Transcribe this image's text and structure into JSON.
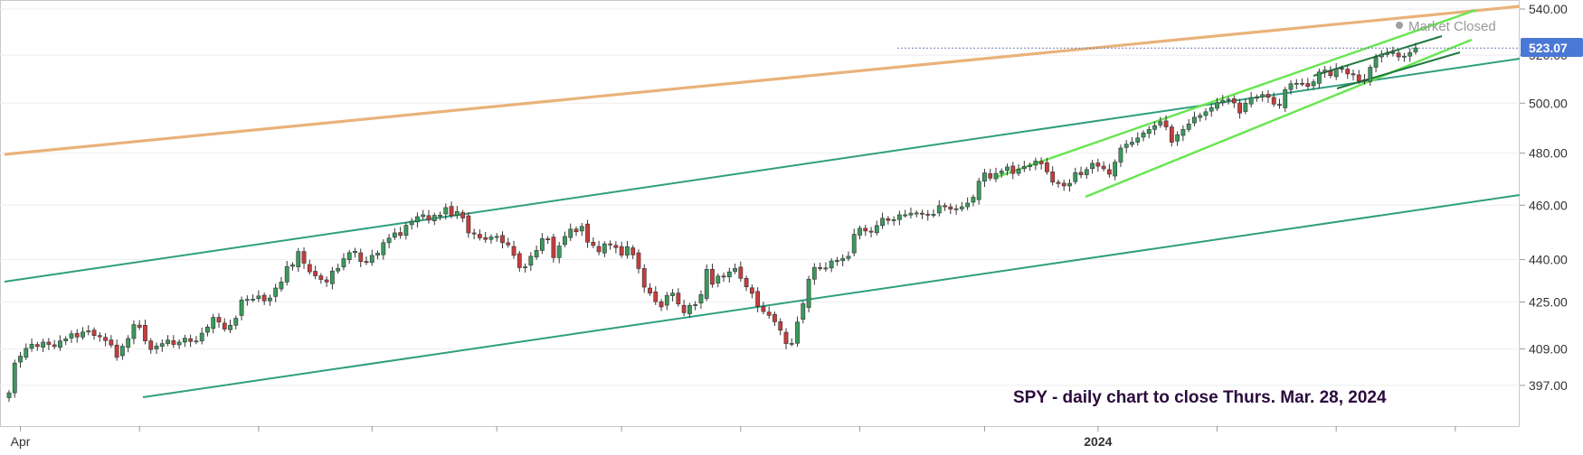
{
  "status": {
    "text": "Market Closed",
    "dot_color": "#9e9e9e"
  },
  "annotation": "SPY - daily chart to close Thurs. Mar. 28, 2024",
  "chart_data": {
    "type": "candlestick",
    "title": "",
    "ylabel": "",
    "xlabel": "",
    "y_ticks": [
      397,
      409,
      425,
      440,
      460,
      480,
      500,
      520,
      540
    ],
    "y_tick_labels": [
      "397.00",
      "409.00",
      "425.00",
      "440.00",
      "460.00",
      "480.00",
      "500.00",
      "520.00",
      "540.00"
    ],
    "y_scale": "log",
    "ylim": [
      384,
      544
    ],
    "x_label_ticks": [
      {
        "label": "Apr",
        "bar": 2,
        "bold": false
      },
      {
        "label": "2024",
        "bar": 192,
        "bold": true
      }
    ],
    "x_minor_tick_bars": [
      23,
      44,
      64,
      86,
      108,
      129,
      150,
      172,
      213,
      234,
      255
    ],
    "last_close": {
      "value": 523.07,
      "label": "523.07",
      "color": "#4a78d6"
    },
    "start_close": 394.6,
    "closes": [
      394.6,
      404.3,
      406.6,
      409.2,
      410.6,
      409.8,
      411.3,
      410.5,
      409.8,
      411.7,
      412.4,
      414.1,
      413.0,
      414.7,
      415.1,
      413.5,
      413.1,
      411.8,
      410.3,
      406.2,
      409.9,
      412.5,
      417.2,
      416.3,
      411.7,
      408.8,
      410.0,
      410.8,
      412.0,
      410.5,
      411.3,
      412.6,
      411.5,
      411.7,
      414.3,
      416.4,
      419.7,
      418.1,
      415.7,
      417.0,
      419.4,
      425.7,
      425.9,
      426.0,
      427.1,
      425.4,
      426.4,
      429.9,
      432.0,
      437.5,
      438.1,
      442.9,
      438.7,
      435.6,
      434.2,
      432.9,
      432.0,
      435.9,
      436.8,
      440.3,
      442.5,
      443.0,
      439.3,
      439.0,
      441.5,
      442.3,
      446.1,
      447.8,
      449.7,
      448.8,
      452.5,
      454.0,
      455.7,
      456.4,
      454.4,
      456.2,
      456.3,
      459.1,
      456.1,
      457.6,
      455.2,
      449.7,
      449.4,
      447.9,
      447.3,
      448.2,
      448.4,
      446.1,
      445.3,
      441.5,
      437.1,
      437.4,
      441.2,
      443.3,
      447.6,
      447.2,
      440.7,
      444.9,
      448.4,
      451.1,
      450.1,
      452.1,
      446.3,
      445.1,
      442.8,
      445.7,
      445.3,
      444.3,
      441.6,
      444.7,
      441.7,
      436.8,
      430.2,
      428.1,
      425.1,
      423.3,
      427.3,
      428.1,
      424.3,
      421.3,
      423.8,
      424.1,
      427.6,
      436.5,
      431.2,
      434.1,
      433.8,
      435.6,
      436.8,
      433.3,
      430.3,
      428.0,
      423.4,
      421.7,
      420.4,
      418.2,
      415.3,
      410.8,
      410.9,
      418.1,
      424.4,
      433.0,
      437.2,
      436.9,
      437.0,
      439.5,
      439.7,
      440.4,
      441.2,
      449.2,
      451.4,
      450.4,
      450.1,
      452.4,
      455.1,
      454.3,
      454.6,
      456.4,
      456.4,
      457.0,
      457.1,
      456.6,
      456.3,
      456.6,
      459.8,
      459.4,
      458.5,
      458.7,
      459.4,
      460.8,
      463.0,
      469.1,
      472.3,
      470.3,
      472.1,
      473.0,
      474.6,
      472.1,
      473.8,
      474.8,
      475.3,
      476.9,
      475.8,
      472.7,
      468.8,
      468.2,
      467.3,
      468.3,
      472.4,
      471.6,
      473.6,
      476.0,
      474.9,
      473.9,
      471.8,
      476.5,
      482.0,
      483.5,
      484.3,
      486.0,
      488.0,
      489.4,
      490.9,
      492.5,
      490.4,
      484.3,
      487.3,
      489.4,
      491.6,
      494.3,
      495.0,
      496.5,
      498.2,
      500.2,
      501.1,
      501.6,
      500.1,
      496.0,
      500.0,
      502.3,
      502.5,
      503.5,
      502.4,
      499.6,
      499.1,
      505.6,
      508.0,
      508.2,
      508.1,
      506.9,
      508.8,
      512.9,
      513.7,
      511.4,
      514.3,
      514.5,
      512.1,
      511.7,
      509.1,
      509.7,
      514.9,
      519.1,
      520.4,
      520.9,
      521.2,
      519.3,
      519.6,
      521.1,
      523.1
    ]
  }
}
